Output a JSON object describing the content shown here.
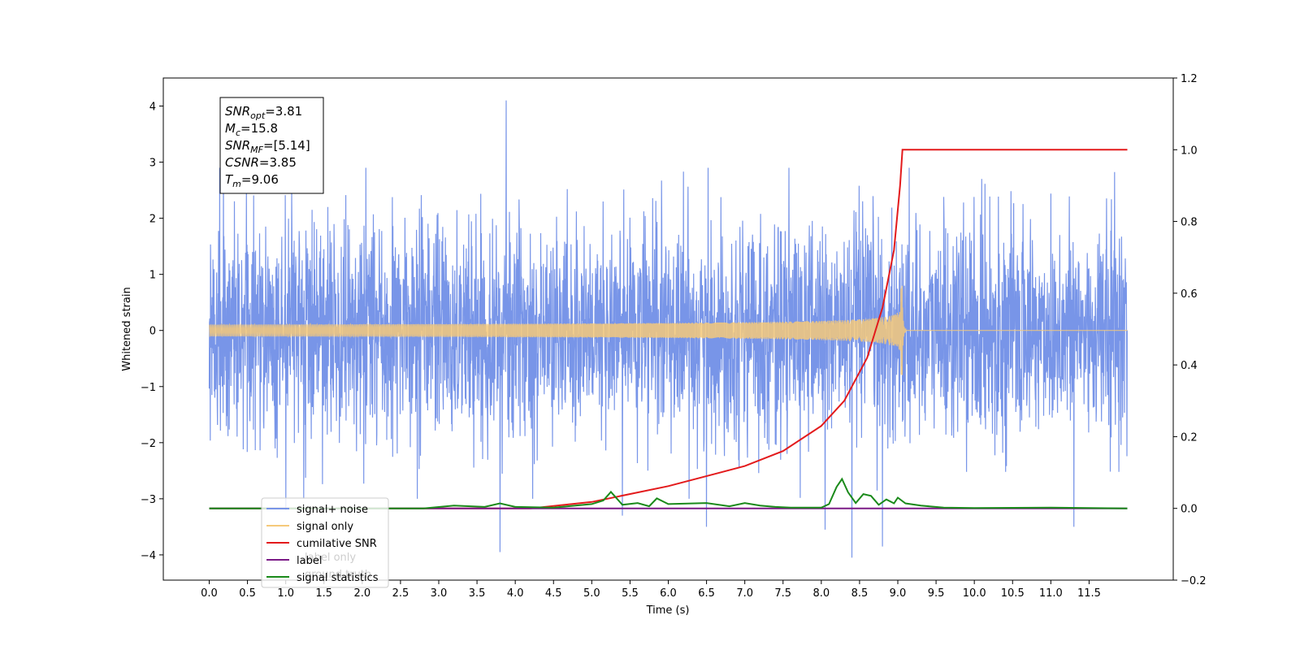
{
  "chart_data": {
    "type": "line",
    "xlabel": "Time (s)",
    "ylabel": "Whitened strain",
    "xlim": [
      -0.6,
      12.6
    ],
    "ylim": [
      -4.45,
      4.5
    ],
    "y2lim": [
      -0.2,
      1.2
    ],
    "xticks": [
      "0.0",
      "0.5",
      "1.0",
      "1.5",
      "2.0",
      "2.5",
      "3.0",
      "3.5",
      "4.0",
      "4.5",
      "5.0",
      "5.5",
      "6.0",
      "6.5",
      "7.0",
      "7.5",
      "8.0",
      "8.5",
      "9.0",
      "9.5",
      "10.0",
      "10.5",
      "11.0",
      "11.5"
    ],
    "yticks": [
      "4",
      "3",
      "2",
      "1",
      "0",
      "−1",
      "−2",
      "−3",
      "−4"
    ],
    "y2ticks": [
      "1.2",
      "1.0",
      "0.8",
      "0.6",
      "0.4",
      "0.2",
      "0.0",
      "−0.2"
    ],
    "series": [
      {
        "name": "signal+ noise",
        "color": "#7895e8",
        "axis": "left",
        "x_range": [
          0.0,
          12.0
        ],
        "noise_sigma": 0.95,
        "spikes": [
          [
            3.88,
            4.1
          ],
          [
            3.8,
            -3.95
          ],
          [
            8.4,
            -4.05
          ],
          [
            8.8,
            -3.85
          ],
          [
            6.5,
            -3.5
          ],
          [
            11.3,
            -3.5
          ],
          [
            5.4,
            -3.3
          ],
          [
            1.0,
            -3.2
          ],
          [
            8.05,
            -3.55
          ]
        ]
      },
      {
        "name": "signal only",
        "color": "#f5c97a",
        "axis": "left",
        "merger_time": 9.06,
        "peak_amplitude": 0.8
      },
      {
        "name": "cumilative SNR",
        "color": "#e31a1c",
        "axis": "right",
        "x": [
          4.2,
          5.0,
          6.0,
          7.0,
          7.5,
          8.0,
          8.3,
          8.6,
          8.8,
          8.95,
          9.03,
          9.06,
          12.0
        ],
        "values": [
          0.0,
          0.018,
          0.062,
          0.118,
          0.16,
          0.23,
          0.3,
          0.42,
          0.56,
          0.72,
          0.9,
          1.0,
          1.0
        ]
      },
      {
        "name": "label",
        "color": "#7b1a86",
        "axis": "right",
        "x": [
          0.0,
          12.0
        ],
        "values": [
          0.0,
          0.0
        ]
      },
      {
        "name": "signal statistics",
        "color": "#1a8a1a",
        "axis": "right",
        "x": [
          0.0,
          2.8,
          3.2,
          3.6,
          3.8,
          4.0,
          4.5,
          5.0,
          5.15,
          5.25,
          5.4,
          5.6,
          5.75,
          5.85,
          6.0,
          6.5,
          6.8,
          7.0,
          7.2,
          7.4,
          7.6,
          8.0,
          8.1,
          8.2,
          8.27,
          8.35,
          8.45,
          8.55,
          8.65,
          8.75,
          8.85,
          8.95,
          9.0,
          9.1,
          9.3,
          9.6,
          10.0,
          11.0,
          12.0
        ],
        "values": [
          0.0,
          0.0,
          0.008,
          0.004,
          0.014,
          0.004,
          0.002,
          0.012,
          0.022,
          0.046,
          0.01,
          0.015,
          0.006,
          0.028,
          0.012,
          0.015,
          0.006,
          0.015,
          0.008,
          0.004,
          0.002,
          0.002,
          0.012,
          0.06,
          0.082,
          0.045,
          0.015,
          0.04,
          0.035,
          0.01,
          0.025,
          0.014,
          0.03,
          0.014,
          0.008,
          0.002,
          0.001,
          0.002,
          0.0
        ]
      }
    ],
    "legend": {
      "location": "lower-left",
      "entries": [
        {
          "label": "signal+ noise",
          "color": "#7895e8"
        },
        {
          "label": "signal only",
          "color": "#f5c97a"
        },
        {
          "label": "cumilative SNR",
          "color": "#e31a1c"
        },
        {
          "label": "label",
          "color": "#7b1a86"
        },
        {
          "label": "signal statistics",
          "color": "#1a8a1a"
        }
      ],
      "hidden_labels": [
        "label only",
        "ground truth"
      ]
    },
    "info_box": [
      {
        "sym": "SNR",
        "sub": "opt",
        "val": "=3.81"
      },
      {
        "sym": "M",
        "sub": "c",
        "val": "=15.8"
      },
      {
        "sym": "SNR",
        "sub": "MF",
        "val": "=[5.14]"
      },
      {
        "sym": "CSNR",
        "sub": "",
        "val": "=3.85"
      },
      {
        "sym": "T",
        "sub": "m",
        "val": "=9.06"
      }
    ]
  }
}
